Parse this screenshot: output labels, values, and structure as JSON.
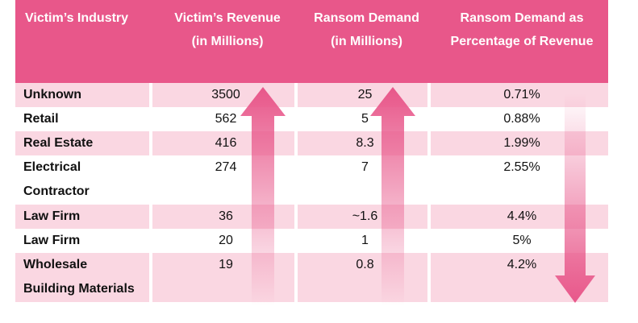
{
  "table": {
    "headers": [
      [
        "Victim’s Industry"
      ],
      [
        "Victim’s Revenue",
        "(in Millions)"
      ],
      [
        "Ransom Demand",
        "(in Millions)"
      ],
      [
        "Ransom Demand as",
        "Percentage of Revenue"
      ]
    ],
    "rows": [
      {
        "industry": [
          "Unknown"
        ],
        "revenue": "3500",
        "demand": "25",
        "percent": "0.71%"
      },
      {
        "industry": [
          "Retail"
        ],
        "revenue": "562",
        "demand": "5",
        "percent": "0.88%"
      },
      {
        "industry": [
          "Real Estate"
        ],
        "revenue": "416",
        "demand": "8.3",
        "percent": "1.99%"
      },
      {
        "industry": [
          "Electrical",
          "Contractor"
        ],
        "revenue": "274",
        "demand": "7",
        "percent": "2.55%"
      },
      {
        "industry": [
          "Law Firm"
        ],
        "revenue": "36",
        "demand": "~1.6",
        "percent": "4.4%"
      },
      {
        "industry": [
          "Law Firm"
        ],
        "revenue": "20",
        "demand": "1",
        "percent": "5%"
      },
      {
        "industry": [
          "Wholesale",
          "Building Materials"
        ],
        "revenue": "19",
        "demand": "0.8",
        "percent": "4.2%"
      }
    ]
  },
  "colors": {
    "header_bg": "#e8578a",
    "row_pink": "#fad7e2",
    "arrow": "#e8578a"
  },
  "icons": {
    "revenue_arrow": "up-arrow-icon",
    "demand_arrow": "up-arrow-icon",
    "percent_arrow": "down-arrow-icon"
  }
}
